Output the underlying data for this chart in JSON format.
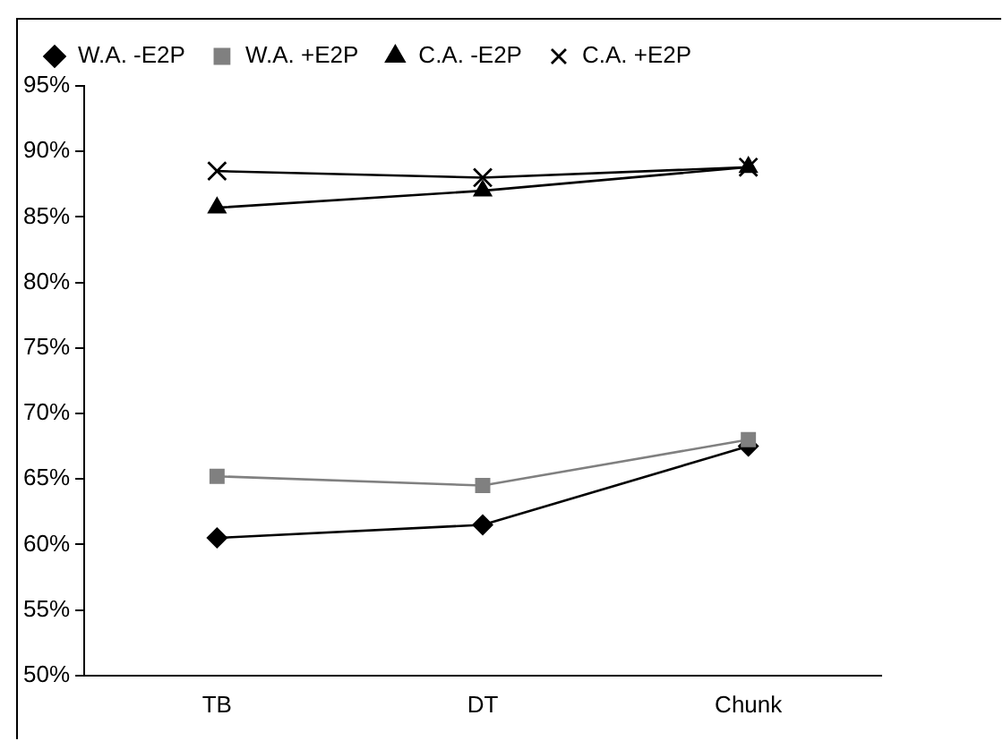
{
  "chart_data": {
    "type": "line",
    "categories": [
      "TB",
      "DT",
      "Chunk"
    ],
    "series": [
      {
        "name": "W.A. -E2P",
        "color": "#000000",
        "marker": "diamond",
        "values": [
          60.5,
          61.5,
          67.5
        ]
      },
      {
        "name": "W.A. +E2P",
        "color": "#808080",
        "marker": "square",
        "values": [
          65.2,
          64.5,
          68.0
        ]
      },
      {
        "name": "C.A. -E2P",
        "color": "#000000",
        "marker": "triangle",
        "values": [
          85.7,
          87.0,
          88.8
        ]
      },
      {
        "name": "C.A. +E2P",
        "color": "#000000",
        "marker": "cross",
        "values": [
          88.5,
          88.0,
          88.8
        ]
      }
    ],
    "ylim": [
      50,
      95
    ],
    "yticks": [
      {
        "value": 50,
        "label": "50%"
      },
      {
        "value": 55,
        "label": "55%"
      },
      {
        "value": 60,
        "label": "60%"
      },
      {
        "value": 65,
        "label": "65%"
      },
      {
        "value": 70,
        "label": "70%"
      },
      {
        "value": 75,
        "label": "75%"
      },
      {
        "value": 80,
        "label": "80%"
      },
      {
        "value": 85,
        "label": "85%"
      },
      {
        "value": 90,
        "label": "90%"
      },
      {
        "value": 95,
        "label": "95%"
      }
    ],
    "grid": false,
    "legend": "top",
    "line_style": "solid"
  }
}
